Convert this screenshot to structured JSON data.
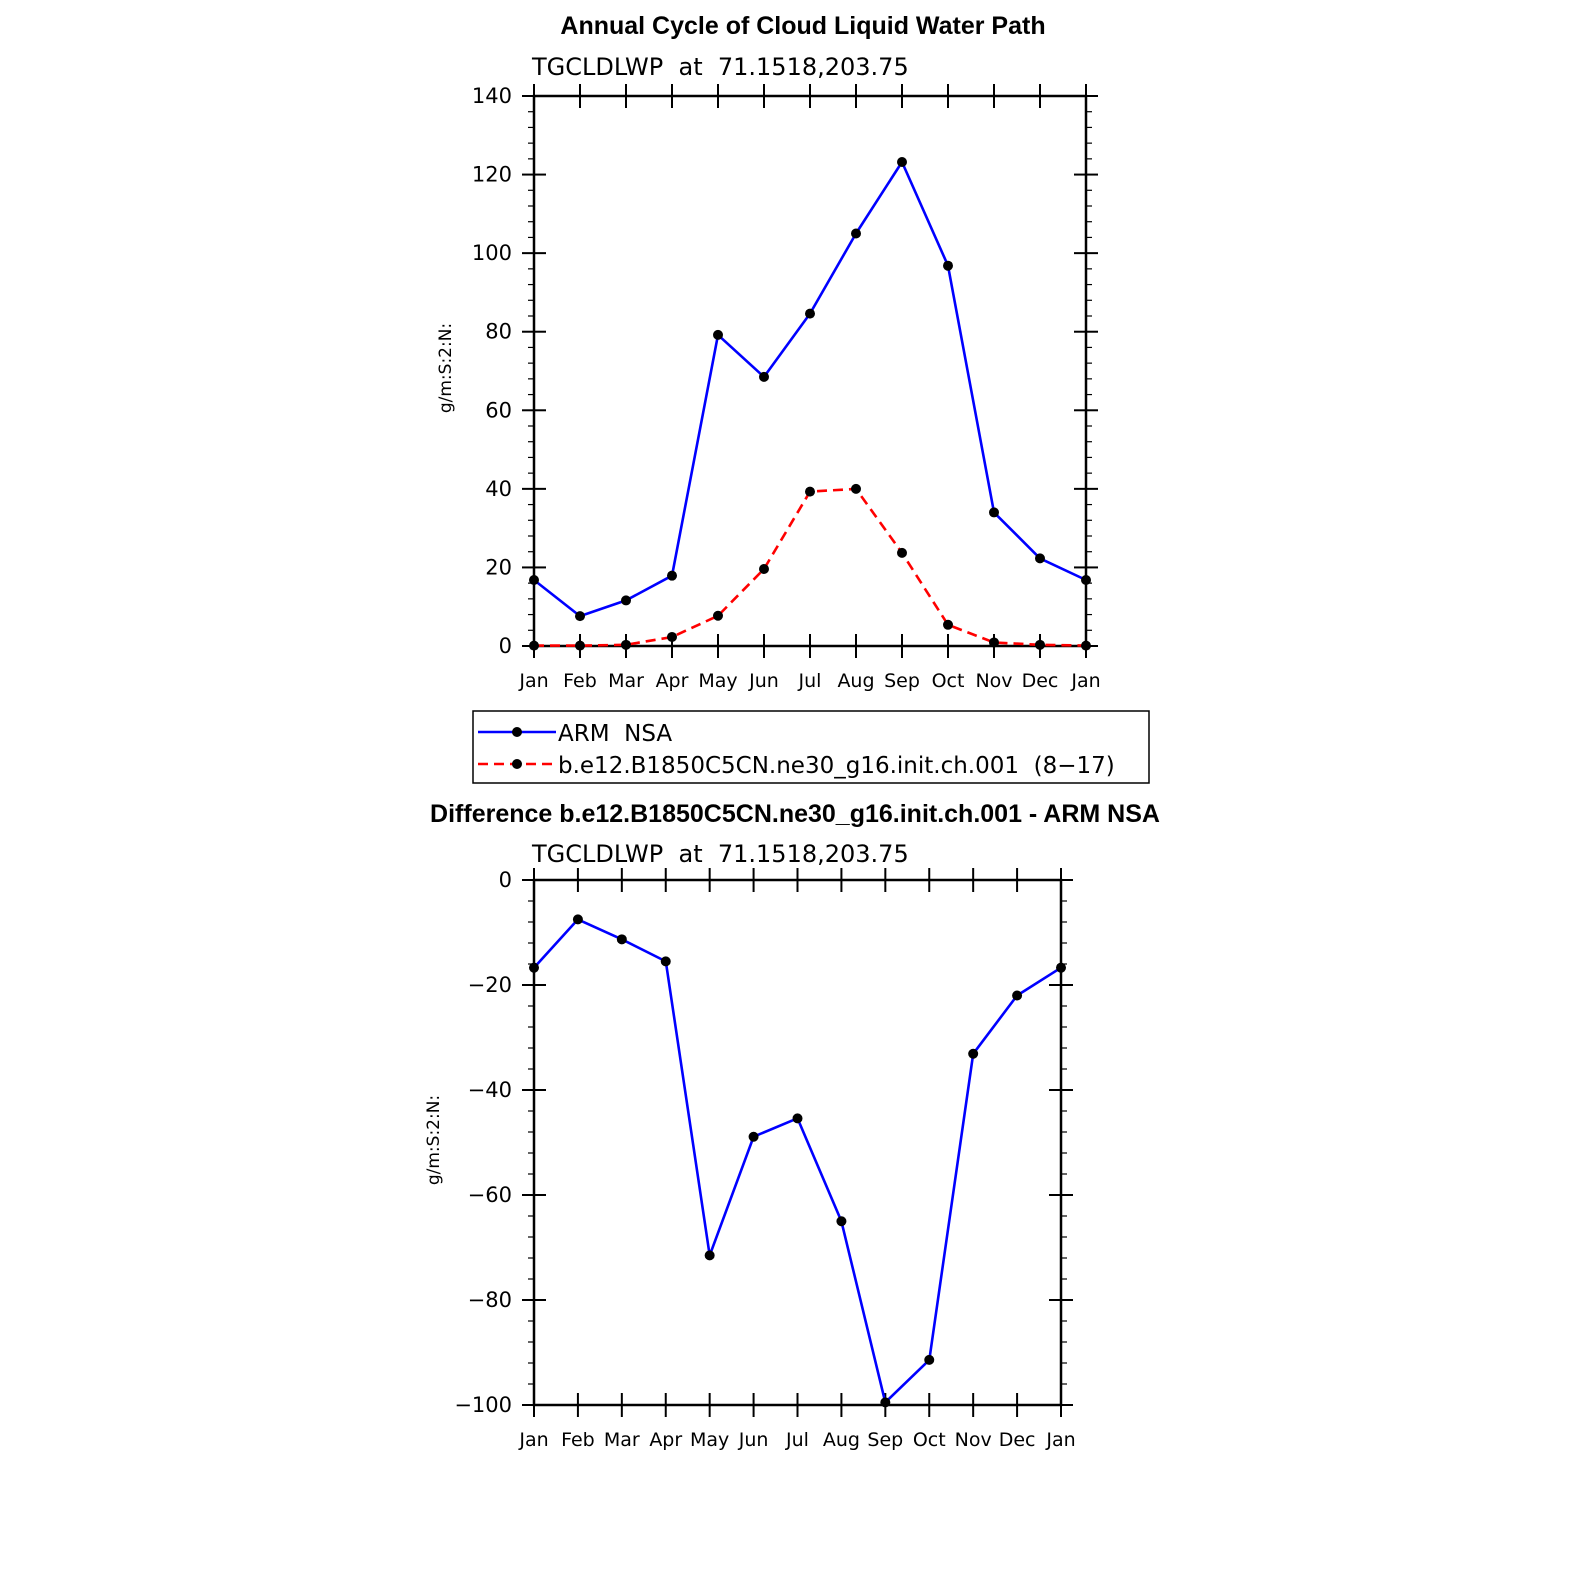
{
  "chart_data": [
    {
      "type": "line",
      "title": "Annual Cycle of Cloud Liquid Water Path",
      "subtitle": "TGCLDLWP  at  71.1518,203.75",
      "xlabel": "",
      "ylabel": "g/m:S:2:N:",
      "categories": [
        "Jan",
        "Feb",
        "Mar",
        "Apr",
        "May",
        "Jun",
        "Jul",
        "Aug",
        "Sep",
        "Oct",
        "Nov",
        "Dec",
        "Jan"
      ],
      "ylim": [
        0,
        140
      ],
      "yticks": [
        "0",
        "20",
        "40",
        "60",
        "80",
        "100",
        "120",
        "140"
      ],
      "yticks_values": [
        0,
        20,
        40,
        60,
        80,
        100,
        120,
        140
      ],
      "series": [
        {
          "name": "ARM  NSA",
          "color": "#0000ff",
          "dash": "solid",
          "values": [
            16.8,
            7.6,
            11.6,
            17.9,
            79.2,
            68.5,
            84.6,
            105.0,
            123.2,
            96.8,
            34.0,
            22.3,
            16.8
          ]
        },
        {
          "name": "b.e12.B1850C5CN.ne30_g16.init.ch.001  (8−17)",
          "color": "#ff0000",
          "dash": "dashed",
          "values": [
            0.1,
            0.1,
            0.3,
            2.3,
            7.7,
            19.6,
            39.3,
            40.0,
            23.7,
            5.4,
            0.9,
            0.3,
            0.1
          ]
        }
      ],
      "legend_position": "below"
    },
    {
      "type": "line",
      "title": "Difference b.e12.B1850C5CN.ne30_g16.init.ch.001 - ARM NSA",
      "subtitle": "TGCLDLWP  at  71.1518,203.75",
      "xlabel": "",
      "ylabel": "g/m:S:2:N:",
      "categories": [
        "Jan",
        "Feb",
        "Mar",
        "Apr",
        "May",
        "Jun",
        "Jul",
        "Aug",
        "Sep",
        "Oct",
        "Nov",
        "Dec",
        "Jan"
      ],
      "ylim": [
        -100,
        0
      ],
      "yticks": [
        "−100",
        "−80",
        "−60",
        "−40",
        "−20",
        "0"
      ],
      "yticks_values": [
        -100,
        -80,
        -60,
        -40,
        -20,
        0
      ],
      "series": [
        {
          "name": "Difference",
          "color": "#0000ff",
          "dash": "solid",
          "values": [
            -16.7,
            -7.5,
            -11.3,
            -15.5,
            -71.5,
            -48.9,
            -45.4,
            -65.0,
            -99.5,
            -91.4,
            -33.1,
            -22.0,
            -16.7
          ]
        }
      ]
    }
  ]
}
